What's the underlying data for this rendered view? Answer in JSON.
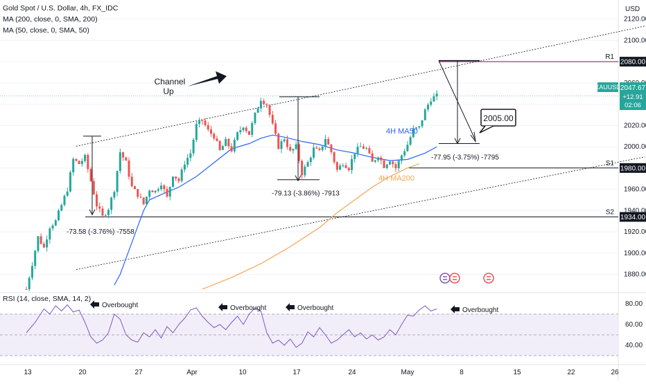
{
  "legend": {
    "title": "Gold Spot / U.S. Dollar, 4h, FX_IDC",
    "ma1": "MA (200, close, 0, SMA, 200)",
    "ma2": "MA (50, close, 0, SMA, 50)",
    "rsi": "RSI (14, close, SMA, 14, 2)"
  },
  "colors": {
    "up": "#26a69a",
    "down": "#ef5350",
    "ma50": "#2962ff",
    "ma200": "#f7a350",
    "rsi": "#7e57c2",
    "rsi_band": "#ede7f6",
    "level_line": "#131722",
    "r1_line": "#880e4f"
  },
  "chart_data": {
    "type": "candlestick",
    "title": "Gold Spot / U.S. Dollar, 4h, FX_IDC",
    "y_axis": {
      "unit": "USD",
      "ylim": [
        1866,
        2138
      ],
      "ticks": [
        1880,
        1900,
        1920,
        1940,
        1960,
        1980,
        2000,
        2020,
        2040,
        2060,
        2080,
        2100,
        2120
      ]
    },
    "x_axis": {
      "ticks": [
        "13",
        "20",
        "27",
        "Apr",
        "10",
        "17",
        "24",
        "May",
        "8",
        "15",
        "22",
        "26"
      ]
    },
    "price_path": [
      [
        0,
        1866
      ],
      [
        2,
        1890
      ],
      [
        4,
        1915
      ],
      [
        6,
        1905
      ],
      [
        8,
        1925
      ],
      [
        10,
        1930
      ],
      [
        12,
        1945
      ],
      [
        14,
        1960
      ],
      [
        16,
        1988
      ],
      [
        18,
        1984
      ],
      [
        20,
        1990
      ],
      [
        22,
        1968
      ],
      [
        24,
        1945
      ],
      [
        26,
        1934
      ],
      [
        28,
        1942
      ],
      [
        30,
        1960
      ],
      [
        32,
        1995
      ],
      [
        34,
        1985
      ],
      [
        36,
        1962
      ],
      [
        38,
        1955
      ],
      [
        40,
        1946
      ],
      [
        42,
        1960
      ],
      [
        44,
        1958
      ],
      [
        46,
        1966
      ],
      [
        48,
        1952
      ],
      [
        50,
        1974
      ],
      [
        52,
        1968
      ],
      [
        54,
        1985
      ],
      [
        56,
        1994
      ],
      [
        58,
        2020
      ],
      [
        60,
        2025
      ],
      [
        62,
        2015
      ],
      [
        64,
        2010
      ],
      [
        66,
        1996
      ],
      [
        68,
        2005
      ],
      [
        70,
        1997
      ],
      [
        72,
        2012
      ],
      [
        74,
        2020
      ],
      [
        76,
        2012
      ],
      [
        78,
        2030
      ],
      [
        80,
        2045
      ],
      [
        82,
        2040
      ],
      [
        84,
        2020
      ],
      [
        86,
        2000
      ],
      [
        88,
        2008
      ],
      [
        90,
        1995
      ],
      [
        92,
        2000
      ],
      [
        94,
        1975
      ],
      [
        96,
        1985
      ],
      [
        98,
        1998
      ],
      [
        100,
        1995
      ],
      [
        102,
        2008
      ],
      [
        104,
        1995
      ],
      [
        106,
        1978
      ],
      [
        108,
        1985
      ],
      [
        110,
        1980
      ],
      [
        112,
        1995
      ],
      [
        114,
        2000
      ],
      [
        116,
        1998
      ],
      [
        118,
        1985
      ],
      [
        120,
        1992
      ],
      [
        122,
        1982
      ],
      [
        124,
        1988
      ],
      [
        126,
        1980
      ],
      [
        128,
        1992
      ],
      [
        130,
        2002
      ],
      [
        132,
        2016
      ],
      [
        134,
        2018
      ],
      [
        136,
        2034
      ],
      [
        138,
        2045
      ],
      [
        140,
        2047.67
      ]
    ],
    "ma50": [
      [
        30,
        1870
      ],
      [
        32,
        1880
      ],
      [
        34,
        1895
      ],
      [
        36,
        1910
      ],
      [
        38,
        1925
      ],
      [
        40,
        1940
      ],
      [
        42,
        1950
      ],
      [
        46,
        1955
      ],
      [
        52,
        1962
      ],
      [
        58,
        1972
      ],
      [
        64,
        1985
      ],
      [
        70,
        1998
      ],
      [
        76,
        2003
      ],
      [
        80,
        2008
      ],
      [
        84,
        2011
      ],
      [
        88,
        2009
      ],
      [
        94,
        2005
      ],
      [
        100,
        2002
      ],
      [
        106,
        1997
      ],
      [
        112,
        1994
      ],
      [
        118,
        1990
      ],
      [
        124,
        1987
      ],
      [
        130,
        1988
      ],
      [
        136,
        1994
      ],
      [
        140,
        2000
      ]
    ],
    "ma200": [
      [
        60,
        1866
      ],
      [
        70,
        1877
      ],
      [
        80,
        1890
      ],
      [
        90,
        1906
      ],
      [
        100,
        1924
      ],
      [
        106,
        1938
      ],
      [
        112,
        1950
      ],
      [
        118,
        1962
      ],
      [
        124,
        1972
      ],
      [
        130,
        1980
      ],
      [
        134,
        1984
      ]
    ],
    "channel": {
      "upper": [
        [
          17,
          2000.5
        ],
        [
          211,
          2113.5
        ]
      ],
      "lower": [
        [
          17,
          1884.5
        ],
        [
          211,
          1990.5
        ]
      ]
    },
    "levels": [
      {
        "name": "R1",
        "value": 2080.0,
        "label": "2080.00"
      },
      {
        "name": "S1",
        "value": 1980.0,
        "label": "1980.00"
      },
      {
        "name": "S2",
        "value": 1934.0,
        "label": "1934.00"
      }
    ],
    "last_price": {
      "symbol": "XAUUSD",
      "price": "2047.67",
      "change": "+12.91",
      "countdown": "02:06"
    },
    "annotations": {
      "channel_label_1": "Channel",
      "channel_label_2": "Up",
      "target": "2005.00",
      "ma50_label": "4H MA50",
      "ma200_label": "4H MA200",
      "drop1": "-73.58 (-3.76%) -7558",
      "drop2": "-79.13 (-3.86%) -7913",
      "drop3": "-77.95 (-3.75%) -7795"
    },
    "rsi": {
      "ticks": [
        40,
        60,
        80
      ],
      "band": [
        30,
        70
      ],
      "ylim": [
        26,
        86
      ],
      "overbought_label": "Overbought",
      "values": [
        [
          0,
          52
        ],
        [
          3,
          62
        ],
        [
          6,
          75
        ],
        [
          8,
          70
        ],
        [
          10,
          78
        ],
        [
          12,
          73
        ],
        [
          14,
          79
        ],
        [
          16,
          72
        ],
        [
          18,
          74
        ],
        [
          20,
          62
        ],
        [
          22,
          48
        ],
        [
          24,
          42
        ],
        [
          26,
          45
        ],
        [
          28,
          52
        ],
        [
          30,
          70
        ],
        [
          32,
          65
        ],
        [
          34,
          50
        ],
        [
          36,
          45
        ],
        [
          38,
          43
        ],
        [
          40,
          52
        ],
        [
          42,
          48
        ],
        [
          44,
          55
        ],
        [
          46,
          47
        ],
        [
          48,
          58
        ],
        [
          50,
          52
        ],
        [
          52,
          60
        ],
        [
          54,
          66
        ],
        [
          56,
          74
        ],
        [
          58,
          76
        ],
        [
          60,
          68
        ],
        [
          62,
          62
        ],
        [
          64,
          57
        ],
        [
          66,
          60
        ],
        [
          68,
          55
        ],
        [
          70,
          62
        ],
        [
          72,
          68
        ],
        [
          74,
          60
        ],
        [
          76,
          70
        ],
        [
          78,
          76
        ],
        [
          80,
          73
        ],
        [
          82,
          52
        ],
        [
          84,
          42
        ],
        [
          86,
          45
        ],
        [
          88,
          40
        ],
        [
          90,
          46
        ],
        [
          92,
          38
        ],
        [
          94,
          42
        ],
        [
          96,
          53
        ],
        [
          98,
          48
        ],
        [
          100,
          57
        ],
        [
          102,
          50
        ],
        [
          104,
          42
        ],
        [
          106,
          45
        ],
        [
          108,
          50
        ],
        [
          110,
          55
        ],
        [
          112,
          48
        ],
        [
          114,
          52
        ],
        [
          116,
          46
        ],
        [
          118,
          50
        ],
        [
          120,
          45
        ],
        [
          122,
          48
        ],
        [
          124,
          55
        ],
        [
          126,
          50
        ],
        [
          128,
          60
        ],
        [
          130,
          69
        ],
        [
          132,
          68
        ],
        [
          134,
          74
        ],
        [
          136,
          78
        ],
        [
          138,
          73
        ],
        [
          140,
          75
        ]
      ]
    }
  }
}
